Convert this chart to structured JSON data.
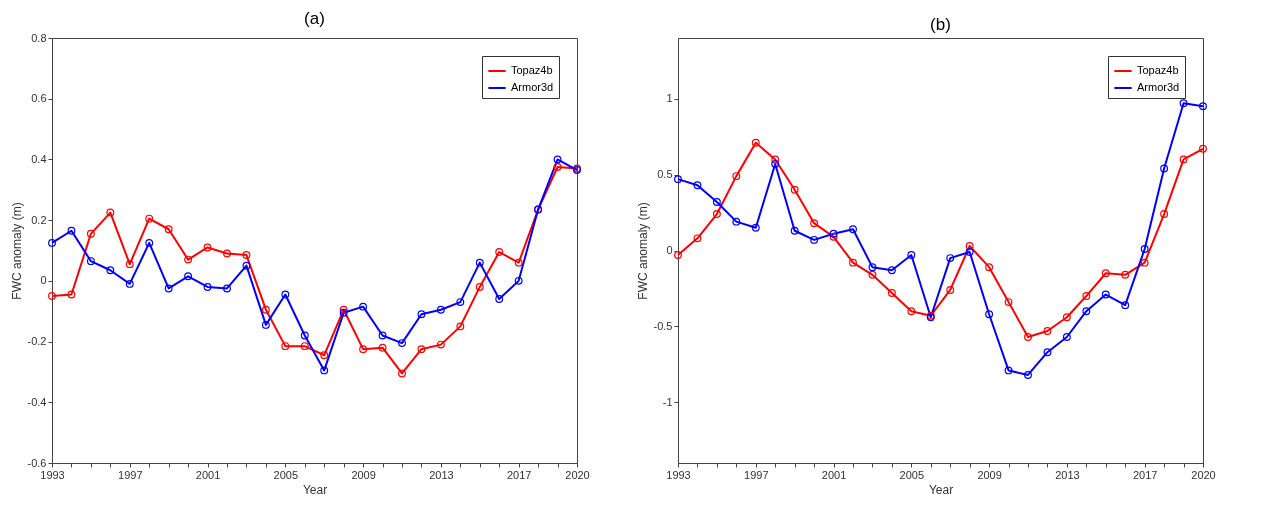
{
  "chart_data": [
    {
      "type": "line",
      "title": "(a)",
      "xlabel": "Year",
      "ylabel": "FWC anomaly (m)",
      "grid": false,
      "legend": "top right",
      "marker": "circle",
      "line_style": "solid",
      "x": [
        1993,
        1994,
        1995,
        1996,
        1997,
        1998,
        1999,
        2000,
        2001,
        2002,
        2003,
        2004,
        2005,
        2006,
        2007,
        2008,
        2009,
        2010,
        2011,
        2012,
        2013,
        2014,
        2015,
        2016,
        2017,
        2018,
        2019,
        2020
      ],
      "xlim": [
        1993,
        2020
      ],
      "xticks": [
        1993,
        {
          "value": 1994,
          "label": null
        },
        {
          "value": 1995,
          "label": null
        },
        {
          "value": 1996,
          "label": null
        },
        1997,
        {
          "value": 1998,
          "label": null
        },
        {
          "value": 1999,
          "label": null
        },
        {
          "value": 2000,
          "label": null
        },
        2001,
        {
          "value": 2002,
          "label": null
        },
        {
          "value": 2003,
          "label": null
        },
        {
          "value": 2004,
          "label": null
        },
        2005,
        {
          "value": 2006,
          "label": null
        },
        {
          "value": 2007,
          "label": null
        },
        {
          "value": 2008,
          "label": null
        },
        2009,
        {
          "value": 2010,
          "label": null
        },
        {
          "value": 2011,
          "label": null
        },
        {
          "value": 2012,
          "label": null
        },
        2013,
        {
          "value": 2014,
          "label": null
        },
        {
          "value": 2015,
          "label": null
        },
        {
          "value": 2016,
          "label": null
        },
        2017,
        {
          "value": 2018,
          "label": null
        },
        {
          "value": 2019,
          "label": null
        },
        2020
      ],
      "ylim": [
        -0.6,
        0.8
      ],
      "yticks": [
        -0.6,
        -0.4,
        -0.2,
        0,
        0.2,
        0.4,
        0.6,
        0.8
      ],
      "series": [
        {
          "name": "Topaz4b",
          "color": "#ff0000",
          "values": [
            -0.05,
            -0.045,
            0.155,
            0.225,
            0.055,
            0.205,
            0.17,
            0.07,
            0.11,
            0.09,
            0.085,
            -0.095,
            -0.215,
            -0.215,
            -0.245,
            -0.095,
            -0.225,
            -0.22,
            -0.305,
            -0.225,
            -0.21,
            -0.15,
            -0.02,
            0.095,
            0.06,
            0.235,
            0.375,
            0.37
          ]
        },
        {
          "name": "Armor3d",
          "color": "#0000ff",
          "values": [
            0.125,
            0.165,
            0.065,
            0.035,
            -0.01,
            0.125,
            -0.025,
            0.015,
            -0.02,
            -0.025,
            0.05,
            -0.145,
            -0.045,
            -0.18,
            -0.295,
            -0.105,
            -0.085,
            -0.18,
            -0.205,
            -0.11,
            -0.095,
            -0.07,
            0.06,
            -0.06,
            0.0,
            0.235,
            0.4,
            0.365
          ]
        }
      ]
    },
    {
      "type": "line",
      "title": "(b)",
      "xlabel": "Year",
      "ylabel": "FWC anomaly (m)",
      "grid": false,
      "legend": "top right",
      "marker": "circle",
      "line_style": "solid",
      "x": [
        1993,
        1994,
        1995,
        1996,
        1997,
        1998,
        1999,
        2000,
        2001,
        2002,
        2003,
        2004,
        2005,
        2006,
        2007,
        2008,
        2009,
        2010,
        2011,
        2012,
        2013,
        2014,
        2015,
        2016,
        2017,
        2018,
        2019,
        2020
      ],
      "xlim": [
        1993,
        2020
      ],
      "xticks": [
        1993,
        {
          "value": 1994,
          "label": null
        },
        {
          "value": 1995,
          "label": null
        },
        {
          "value": 1996,
          "label": null
        },
        1997,
        {
          "value": 1998,
          "label": null
        },
        {
          "value": 1999,
          "label": null
        },
        {
          "value": 2000,
          "label": null
        },
        2001,
        {
          "value": 2002,
          "label": null
        },
        {
          "value": 2003,
          "label": null
        },
        {
          "value": 2004,
          "label": null
        },
        2005,
        {
          "value": 2006,
          "label": null
        },
        {
          "value": 2007,
          "label": null
        },
        {
          "value": 2008,
          "label": null
        },
        2009,
        {
          "value": 2010,
          "label": null
        },
        {
          "value": 2011,
          "label": null
        },
        {
          "value": 2012,
          "label": null
        },
        2013,
        {
          "value": 2014,
          "label": null
        },
        {
          "value": 2015,
          "label": null
        },
        {
          "value": 2016,
          "label": null
        },
        2017,
        {
          "value": 2018,
          "label": null
        },
        {
          "value": 2019,
          "label": null
        },
        2020
      ],
      "ylim": [
        -1.4,
        1.4
      ],
      "yticks": [
        -1,
        -0.5,
        0,
        0.5,
        1
      ],
      "series": [
        {
          "name": "Topaz4b",
          "color": "#ff0000",
          "values": [
            -0.03,
            0.08,
            0.24,
            0.49,
            0.71,
            0.6,
            0.4,
            0.18,
            0.09,
            -0.08,
            -0.16,
            -0.28,
            -0.4,
            -0.43,
            -0.26,
            0.03,
            -0.11,
            -0.34,
            -0.57,
            -0.53,
            -0.44,
            -0.3,
            -0.15,
            -0.16,
            -0.08,
            0.24,
            0.6,
            0.67
          ]
        },
        {
          "name": "Armor3d",
          "color": "#0000ff",
          "values": [
            0.47,
            0.43,
            0.32,
            0.19,
            0.15,
            0.57,
            0.13,
            0.07,
            0.11,
            0.14,
            -0.11,
            -0.13,
            -0.03,
            -0.44,
            -0.05,
            -0.01,
            -0.42,
            -0.79,
            -0.82,
            -0.67,
            -0.57,
            -0.4,
            -0.29,
            -0.36,
            0.01,
            0.54,
            0.97,
            0.95
          ]
        }
      ]
    }
  ]
}
